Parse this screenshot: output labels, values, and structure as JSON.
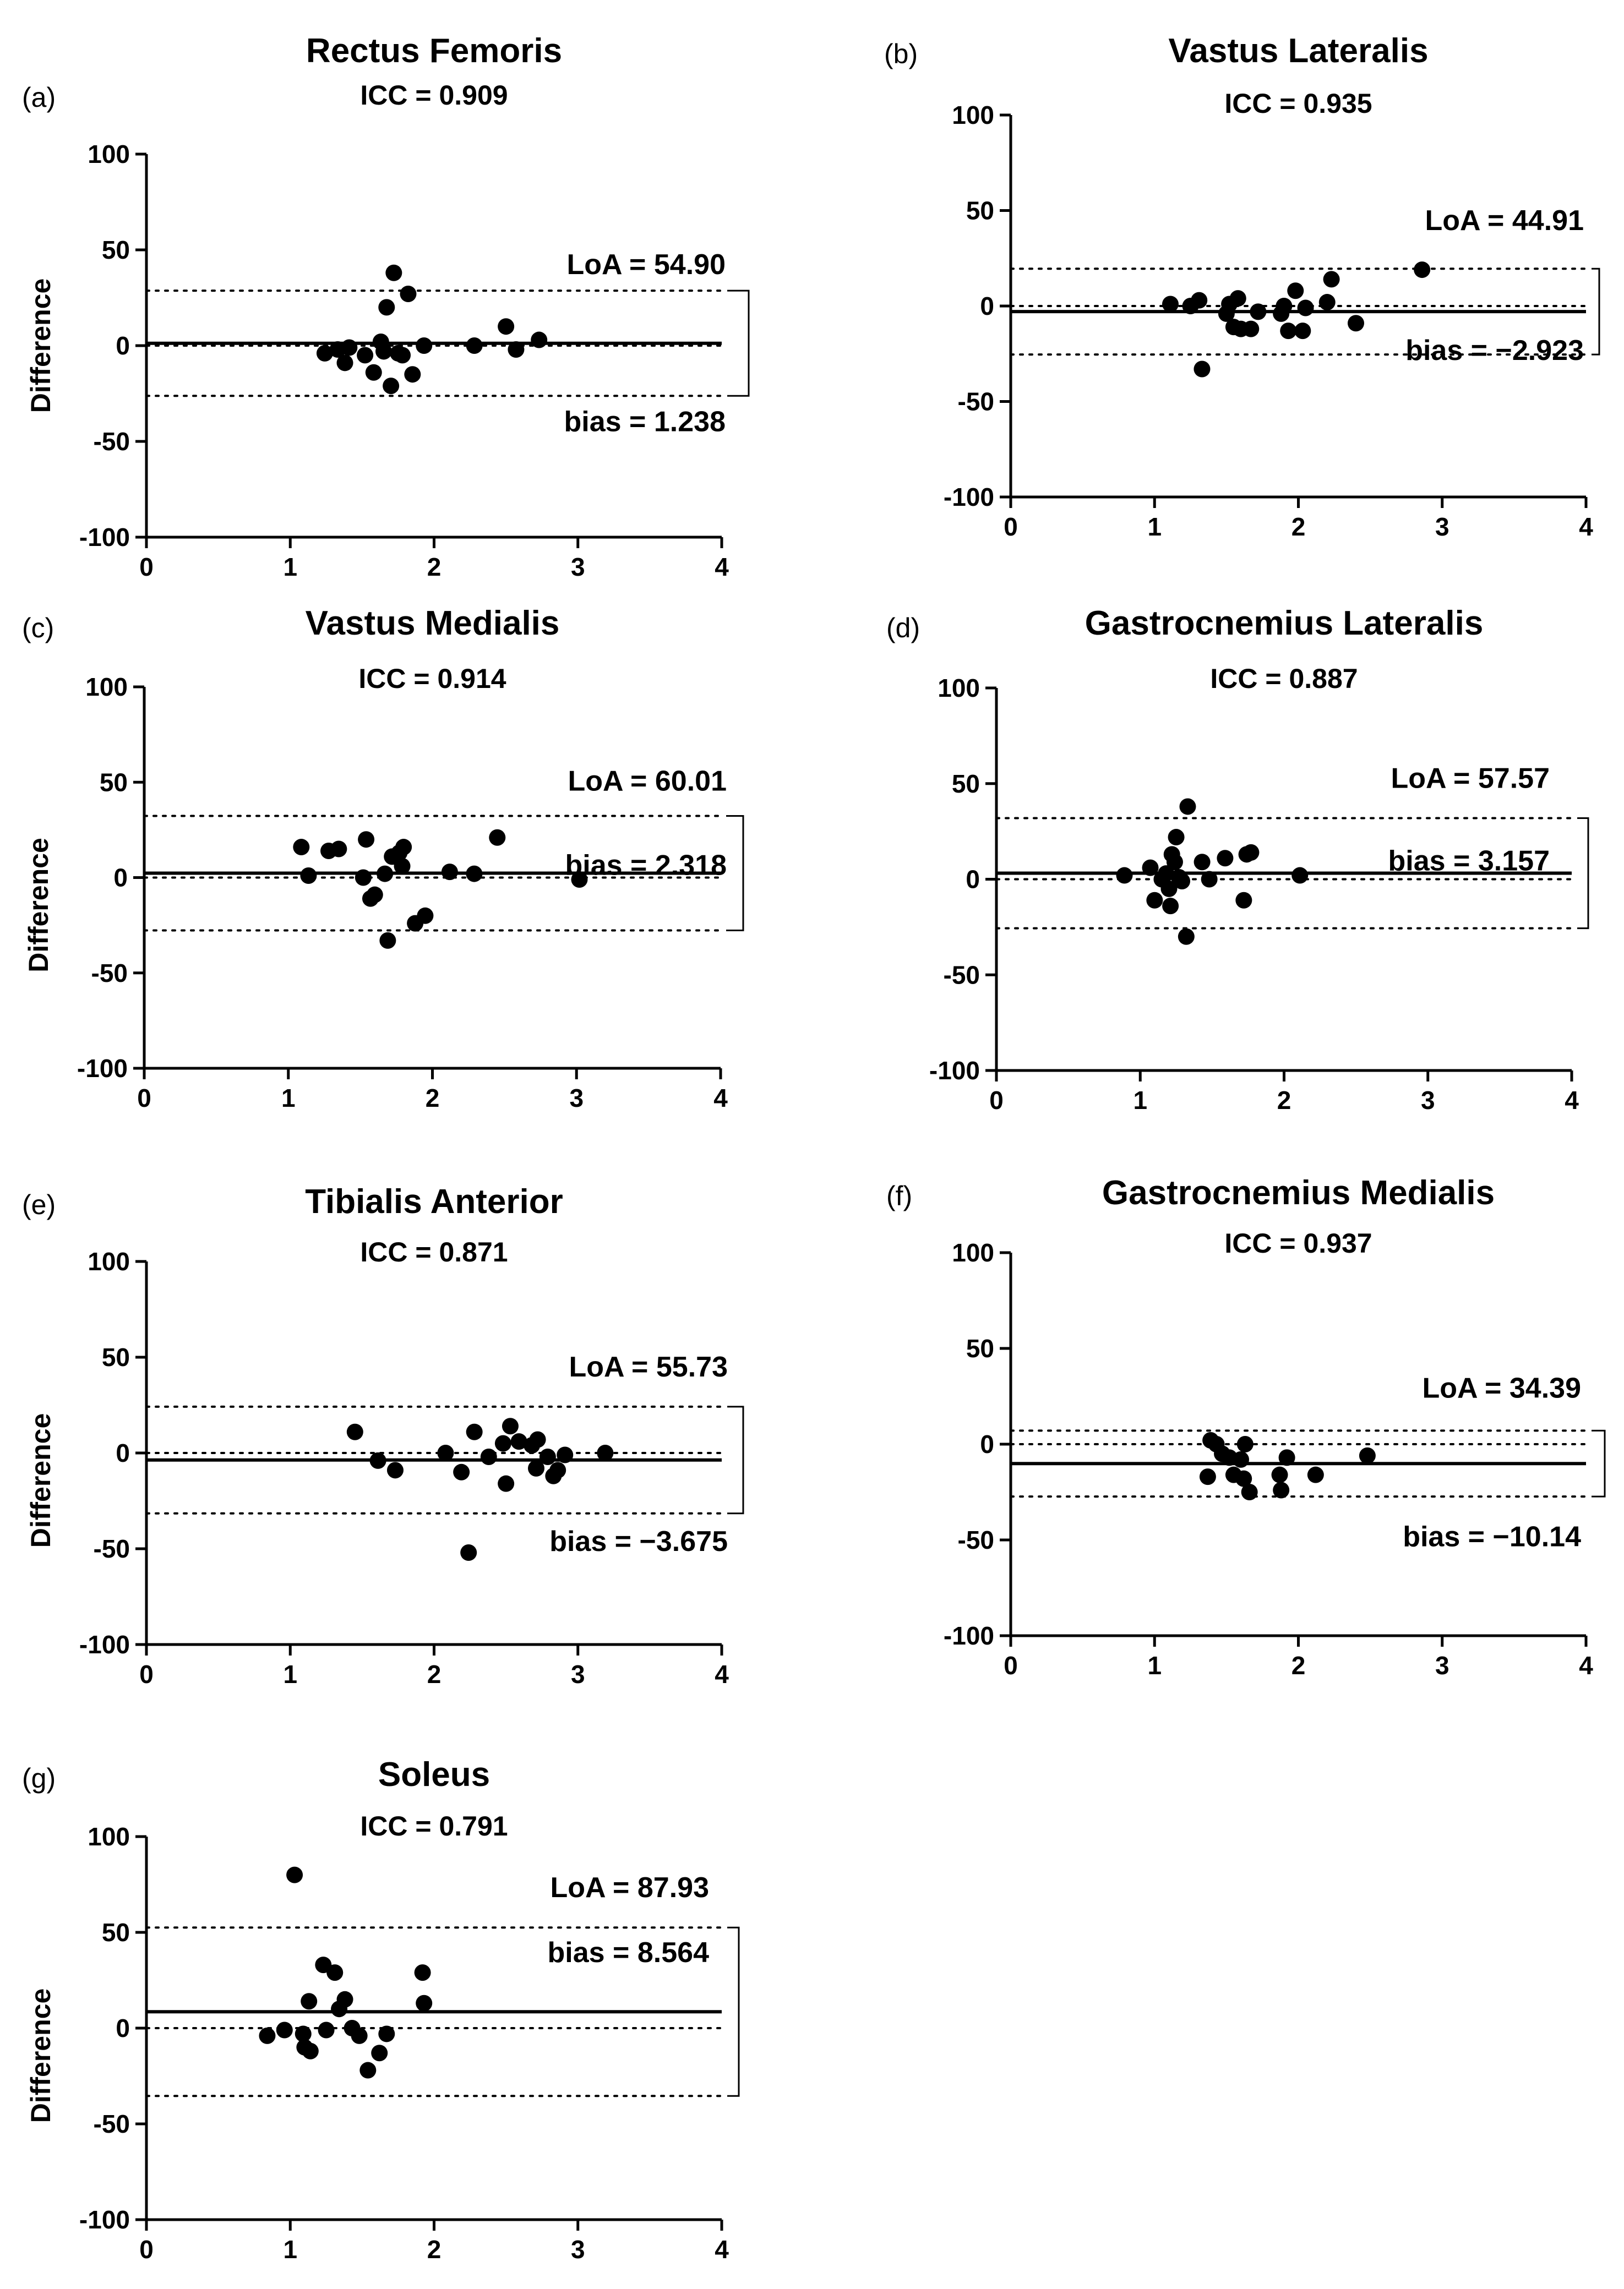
{
  "chart_data": [
    {
      "type": "scatter",
      "panel_label": "(a)",
      "title": "Rectus Femoris",
      "icc": "ICC = 0.909",
      "ylabel": "Difference",
      "xlabel": "",
      "xlim": [
        0,
        4
      ],
      "ylim": [
        -100,
        100
      ],
      "x_ticks": [
        "0",
        "1",
        "2",
        "3",
        "4"
      ],
      "y_ticks": [
        "-100",
        "-50",
        "0",
        "50",
        "100"
      ],
      "bias": 1.238,
      "upper_loa": 28.69,
      "lower_loa": -26.21,
      "loa_label": "LoA = 54.90",
      "bias_label": "bias = 1.238",
      "points": [
        {
          "x": 1.24,
          "y": -4
        },
        {
          "x": 1.33,
          "y": -2
        },
        {
          "x": 1.38,
          "y": -9
        },
        {
          "x": 1.41,
          "y": -1
        },
        {
          "x": 1.52,
          "y": -5
        },
        {
          "x": 1.58,
          "y": -14
        },
        {
          "x": 1.63,
          "y": 2
        },
        {
          "x": 1.65,
          "y": -3
        },
        {
          "x": 1.67,
          "y": 20
        },
        {
          "x": 1.7,
          "y": -21
        },
        {
          "x": 1.72,
          "y": 38
        },
        {
          "x": 1.75,
          "y": -4
        },
        {
          "x": 1.78,
          "y": -5
        },
        {
          "x": 1.82,
          "y": 27
        },
        {
          "x": 1.85,
          "y": -15
        },
        {
          "x": 1.93,
          "y": 0
        },
        {
          "x": 2.28,
          "y": 0
        },
        {
          "x": 2.5,
          "y": 10
        },
        {
          "x": 2.57,
          "y": -2
        },
        {
          "x": 2.73,
          "y": 3
        }
      ]
    },
    {
      "type": "scatter",
      "panel_label": "(b)",
      "title": "Vastus Lateralis",
      "icc": "ICC = 0.935",
      "ylabel": "",
      "xlabel": "",
      "xlim": [
        0,
        4
      ],
      "ylim": [
        -100,
        100
      ],
      "x_ticks": [
        "0",
        "1",
        "2",
        "3",
        "4"
      ],
      "y_ticks": [
        "-100",
        "-50",
        "0",
        "50",
        "100"
      ],
      "bias": -2.923,
      "upper_loa": 19.53,
      "lower_loa": -25.38,
      "loa_label": "LoA = 44.91",
      "bias_label": "bias = −2.923",
      "points": [
        {
          "x": 1.11,
          "y": 1
        },
        {
          "x": 1.25,
          "y": 0
        },
        {
          "x": 1.31,
          "y": 3
        },
        {
          "x": 1.33,
          "y": -33
        },
        {
          "x": 1.5,
          "y": -4
        },
        {
          "x": 1.52,
          "y": 1
        },
        {
          "x": 1.55,
          "y": -11
        },
        {
          "x": 1.58,
          "y": 4
        },
        {
          "x": 1.6,
          "y": -12
        },
        {
          "x": 1.67,
          "y": -12
        },
        {
          "x": 1.72,
          "y": -3
        },
        {
          "x": 1.88,
          "y": -4
        },
        {
          "x": 1.9,
          "y": 0
        },
        {
          "x": 1.93,
          "y": -13
        },
        {
          "x": 1.98,
          "y": 8
        },
        {
          "x": 2.03,
          "y": -13
        },
        {
          "x": 2.05,
          "y": -1
        },
        {
          "x": 2.2,
          "y": 2
        },
        {
          "x": 2.23,
          "y": 14
        },
        {
          "x": 2.4,
          "y": -9
        },
        {
          "x": 2.86,
          "y": 19
        }
      ]
    },
    {
      "type": "scatter",
      "panel_label": "(c)",
      "title": "Vastus Medialis",
      "icc": "ICC = 0.914",
      "ylabel": "Difference",
      "xlabel": "",
      "xlim": [
        0,
        4
      ],
      "ylim": [
        -100,
        100
      ],
      "x_ticks": [
        "0",
        "1",
        "2",
        "3",
        "4"
      ],
      "y_ticks": [
        "-100",
        "-50",
        "0",
        "50",
        "100"
      ],
      "bias": 2.318,
      "upper_loa": 32.32,
      "lower_loa": -27.69,
      "loa_label": "LoA = 60.01",
      "bias_label": "bias = 2.318",
      "points": [
        {
          "x": 1.09,
          "y": 16
        },
        {
          "x": 1.14,
          "y": 1
        },
        {
          "x": 1.28,
          "y": 14
        },
        {
          "x": 1.35,
          "y": 15
        },
        {
          "x": 1.52,
          "y": 0
        },
        {
          "x": 1.54,
          "y": 20
        },
        {
          "x": 1.57,
          "y": -11
        },
        {
          "x": 1.6,
          "y": -9
        },
        {
          "x": 1.67,
          "y": 2
        },
        {
          "x": 1.69,
          "y": -33
        },
        {
          "x": 1.72,
          "y": 11
        },
        {
          "x": 1.77,
          "y": 13
        },
        {
          "x": 1.79,
          "y": 6
        },
        {
          "x": 1.8,
          "y": 16
        },
        {
          "x": 1.88,
          "y": -24
        },
        {
          "x": 1.95,
          "y": -20
        },
        {
          "x": 2.12,
          "y": 3
        },
        {
          "x": 2.29,
          "y": 2
        },
        {
          "x": 2.45,
          "y": 21
        },
        {
          "x": 3.02,
          "y": -1
        }
      ]
    },
    {
      "type": "scatter",
      "panel_label": "(d)",
      "title": "Gastrocnemius Lateralis",
      "icc": "ICC = 0.887",
      "ylabel": "",
      "xlabel": "",
      "xlim": [
        0,
        4
      ],
      "ylim": [
        -100,
        100
      ],
      "x_ticks": [
        "0",
        "1",
        "2",
        "3",
        "4"
      ],
      "y_ticks": [
        "-100",
        "-50",
        "0",
        "50",
        "100"
      ],
      "bias": 3.157,
      "upper_loa": 31.94,
      "lower_loa": -25.63,
      "loa_label": "LoA = 57.57",
      "bias_label": "bias = 3.157",
      "points": [
        {
          "x": 0.89,
          "y": 2
        },
        {
          "x": 1.07,
          "y": 6
        },
        {
          "x": 1.1,
          "y": -11
        },
        {
          "x": 1.15,
          "y": 0
        },
        {
          "x": 1.18,
          "y": 3
        },
        {
          "x": 1.2,
          "y": -5
        },
        {
          "x": 1.21,
          "y": -14
        },
        {
          "x": 1.22,
          "y": 13
        },
        {
          "x": 1.24,
          "y": 9
        },
        {
          "x": 1.25,
          "y": 22
        },
        {
          "x": 1.27,
          "y": 1
        },
        {
          "x": 1.29,
          "y": -1
        },
        {
          "x": 1.32,
          "y": -30
        },
        {
          "x": 1.33,
          "y": 38
        },
        {
          "x": 1.43,
          "y": 9
        },
        {
          "x": 1.48,
          "y": 0
        },
        {
          "x": 1.59,
          "y": 11
        },
        {
          "x": 1.72,
          "y": -11
        },
        {
          "x": 1.74,
          "y": 13
        },
        {
          "x": 1.77,
          "y": 14
        },
        {
          "x": 2.11,
          "y": 2
        }
      ]
    },
    {
      "type": "scatter",
      "panel_label": "(e)",
      "title": "Tibialis Anterior",
      "icc": "ICC = 0.871",
      "ylabel": "Difference",
      "xlabel": "",
      "xlim": [
        0,
        4
      ],
      "ylim": [
        -100,
        100
      ],
      "x_ticks": [
        "0",
        "1",
        "2",
        "3",
        "4"
      ],
      "y_ticks": [
        "-100",
        "-50",
        "0",
        "50",
        "100"
      ],
      "bias": -3.675,
      "upper_loa": 24.19,
      "lower_loa": -31.54,
      "loa_label": "LoA = 55.73",
      "bias_label": "bias = −3.675",
      "points": [
        {
          "x": 1.45,
          "y": 11
        },
        {
          "x": 1.61,
          "y": -4
        },
        {
          "x": 1.73,
          "y": -9
        },
        {
          "x": 2.08,
          "y": 0
        },
        {
          "x": 2.19,
          "y": -10
        },
        {
          "x": 2.24,
          "y": -52
        },
        {
          "x": 2.28,
          "y": 11
        },
        {
          "x": 2.38,
          "y": -2
        },
        {
          "x": 2.48,
          "y": 5
        },
        {
          "x": 2.5,
          "y": -16
        },
        {
          "x": 2.53,
          "y": 14
        },
        {
          "x": 2.59,
          "y": 6
        },
        {
          "x": 2.68,
          "y": 4
        },
        {
          "x": 2.71,
          "y": -8
        },
        {
          "x": 2.72,
          "y": 7
        },
        {
          "x": 2.79,
          "y": -2
        },
        {
          "x": 2.83,
          "y": -12
        },
        {
          "x": 2.86,
          "y": -9
        },
        {
          "x": 2.91,
          "y": -1
        },
        {
          "x": 3.19,
          "y": 0
        }
      ]
    },
    {
      "type": "scatter",
      "panel_label": "(f)",
      "title": "Gastrocnemius Medialis",
      "icc": "ICC = 0.937",
      "ylabel": "",
      "xlabel": "",
      "xlim": [
        0,
        4
      ],
      "ylim": [
        -100,
        100
      ],
      "x_ticks": [
        "0",
        "1",
        "2",
        "3",
        "4"
      ],
      "y_ticks": [
        "-100",
        "-50",
        "0",
        "50",
        "100"
      ],
      "bias": -10.14,
      "upper_loa": 7.06,
      "lower_loa": -27.34,
      "loa_label": "LoA = 34.39",
      "bias_label": "bias = −10.14",
      "points": [
        {
          "x": 1.37,
          "y": -17
        },
        {
          "x": 1.39,
          "y": 2
        },
        {
          "x": 1.43,
          "y": 0
        },
        {
          "x": 1.47,
          "y": -5
        },
        {
          "x": 1.52,
          "y": -7
        },
        {
          "x": 1.55,
          "y": -16
        },
        {
          "x": 1.6,
          "y": -8
        },
        {
          "x": 1.62,
          "y": -18
        },
        {
          "x": 1.63,
          "y": 0
        },
        {
          "x": 1.66,
          "y": -25
        },
        {
          "x": 1.87,
          "y": -16
        },
        {
          "x": 1.88,
          "y": -24
        },
        {
          "x": 1.92,
          "y": -7
        },
        {
          "x": 2.12,
          "y": -16
        },
        {
          "x": 2.48,
          "y": -6
        }
      ]
    },
    {
      "type": "scatter",
      "panel_label": "(g)",
      "title": "Soleus",
      "icc": "ICC = 0.791",
      "ylabel": "Difference",
      "xlabel": "",
      "xlim": [
        0,
        4
      ],
      "ylim": [
        -100,
        100
      ],
      "x_ticks": [
        "0",
        "1",
        "2",
        "3",
        "4"
      ],
      "y_ticks": [
        "-100",
        "-50",
        "0",
        "50",
        "100"
      ],
      "bias": 8.564,
      "upper_loa": 52.53,
      "lower_loa": -35.4,
      "loa_label": "LoA = 87.93",
      "bias_label": "bias = 8.564",
      "points": [
        {
          "x": 0.84,
          "y": -4
        },
        {
          "x": 0.96,
          "y": -1
        },
        {
          "x": 1.03,
          "y": 80
        },
        {
          "x": 1.09,
          "y": -3
        },
        {
          "x": 1.1,
          "y": -10
        },
        {
          "x": 1.13,
          "y": 14
        },
        {
          "x": 1.14,
          "y": -12
        },
        {
          "x": 1.23,
          "y": 33
        },
        {
          "x": 1.25,
          "y": -1
        },
        {
          "x": 1.31,
          "y": 29
        },
        {
          "x": 1.34,
          "y": 10
        },
        {
          "x": 1.38,
          "y": 15
        },
        {
          "x": 1.43,
          "y": 0
        },
        {
          "x": 1.48,
          "y": -4
        },
        {
          "x": 1.54,
          "y": -22
        },
        {
          "x": 1.62,
          "y": -13
        },
        {
          "x": 1.67,
          "y": -3
        },
        {
          "x": 1.92,
          "y": 29
        },
        {
          "x": 1.93,
          "y": 13
        }
      ]
    }
  ]
}
